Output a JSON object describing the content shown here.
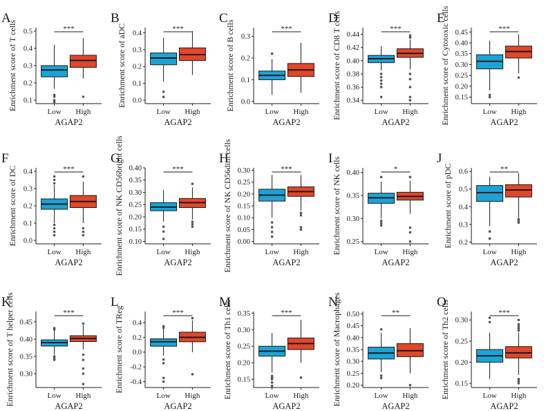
{
  "figure": {
    "colors": {
      "low": "#1ba3d6",
      "high": "#e0472b",
      "outlier": "#555555",
      "axis": "#1a1a1a"
    },
    "categories": [
      "Low",
      "High"
    ],
    "xlabel": "AGAP2"
  },
  "chart_data": [
    {
      "type": "box",
      "panel": "A",
      "ylabel": "Enrichment score of T cells",
      "ylim": [
        0.08,
        0.52
      ],
      "ticks": [
        0.1,
        0.2,
        0.3,
        0.4,
        0.5
      ],
      "tick_labels": [
        "0.1",
        "0.2",
        "0.3",
        "0.4",
        "0.5"
      ],
      "significance": "***",
      "series": [
        {
          "name": "Low",
          "q1": 0.235,
          "median": 0.275,
          "q3": 0.3,
          "lo": 0.165,
          "hi": 0.42,
          "outliers": [
            0.13,
            0.12,
            0.1,
            0.09
          ]
        },
        {
          "name": "High",
          "q1": 0.29,
          "median": 0.33,
          "q3": 0.36,
          "lo": 0.225,
          "hi": 0.46,
          "outliers": [
            0.12
          ]
        }
      ]
    },
    {
      "type": "box",
      "panel": "B",
      "ylabel": "Enrichment score of aDC",
      "ylim": [
        -0.02,
        0.43
      ],
      "ticks": [
        0.0,
        0.1,
        0.2,
        0.3,
        0.4
      ],
      "tick_labels": [
        "0.0",
        "0.1",
        "0.2",
        "0.3",
        "0.4"
      ],
      "significance": "***",
      "series": [
        {
          "name": "Low",
          "q1": 0.21,
          "median": 0.25,
          "q3": 0.28,
          "lo": 0.11,
          "hi": 0.37,
          "outliers": [
            0.05,
            0.02
          ]
        },
        {
          "name": "High",
          "q1": 0.235,
          "median": 0.27,
          "q3": 0.31,
          "lo": 0.15,
          "hi": 0.41,
          "outliers": []
        }
      ]
    },
    {
      "type": "box",
      "panel": "C",
      "ylabel": "Enrichment score of B cells",
      "ylim": [
        -0.01,
        0.34
      ],
      "ticks": [
        0.0,
        0.1,
        0.2,
        0.3
      ],
      "tick_labels": [
        "0.0",
        "0.1",
        "0.2",
        "0.3"
      ],
      "significance": "***",
      "series": [
        {
          "name": "Low",
          "q1": 0.1,
          "median": 0.12,
          "q3": 0.14,
          "lo": 0.03,
          "hi": 0.195,
          "outliers": [
            0.22
          ]
        },
        {
          "name": "High",
          "q1": 0.115,
          "median": 0.145,
          "q3": 0.175,
          "lo": 0.04,
          "hi": 0.27,
          "outliers": []
        }
      ]
    },
    {
      "type": "box",
      "panel": "D",
      "ylabel": "Enrichment score of CD8 T cells",
      "ylim": [
        0.335,
        0.45
      ],
      "ticks": [
        0.34,
        0.36,
        0.38,
        0.4,
        0.42,
        0.44
      ],
      "tick_labels": [
        "0.34",
        "0.36",
        "0.38",
        "0.40",
        "0.42",
        "0.44"
      ],
      "significance": "***",
      "series": [
        {
          "name": "Low",
          "q1": 0.397,
          "median": 0.403,
          "q3": 0.408,
          "lo": 0.385,
          "hi": 0.422,
          "outliers": [
            0.38,
            0.375,
            0.37,
            0.365,
            0.36,
            0.345
          ]
        },
        {
          "name": "High",
          "q1": 0.405,
          "median": 0.411,
          "q3": 0.418,
          "lo": 0.387,
          "hi": 0.432,
          "outliers": [
            0.438,
            0.435,
            0.38,
            0.372,
            0.36,
            0.345,
            0.34
          ]
        }
      ]
    },
    {
      "type": "box",
      "panel": "E",
      "ylabel": "Enrichment score of Cytotoxic cells",
      "ylim": [
        0.12,
        0.47
      ],
      "ticks": [
        0.15,
        0.2,
        0.25,
        0.3,
        0.35,
        0.4,
        0.45
      ],
      "tick_labels": [
        "0.15",
        "0.20",
        "0.25",
        "0.30",
        "0.35",
        "0.40",
        "0.45"
      ],
      "significance": "***",
      "series": [
        {
          "name": "Low",
          "q1": 0.28,
          "median": 0.315,
          "q3": 0.345,
          "lo": 0.18,
          "hi": 0.41,
          "outliers": [
            0.16,
            0.15
          ]
        },
        {
          "name": "High",
          "q1": 0.33,
          "median": 0.36,
          "q3": 0.385,
          "lo": 0.26,
          "hi": 0.44,
          "outliers": [
            0.24
          ]
        }
      ]
    },
    {
      "type": "box",
      "panel": "F",
      "ylabel": "Enrichment score of DC",
      "ylim": [
        -0.02,
        0.42
      ],
      "ticks": [
        0.0,
        0.1,
        0.2,
        0.3,
        0.4
      ],
      "tick_labels": [
        "0.0",
        "0.1",
        "0.2",
        "0.3",
        "0.4"
      ],
      "significance": "***",
      "series": [
        {
          "name": "Low",
          "q1": 0.18,
          "median": 0.21,
          "q3": 0.24,
          "lo": 0.1,
          "hi": 0.32,
          "outliers": [
            0.37,
            0.35,
            0.33,
            0.09,
            0.07,
            0.05,
            0.03
          ]
        },
        {
          "name": "High",
          "q1": 0.19,
          "median": 0.225,
          "q3": 0.26,
          "lo": 0.1,
          "hi": 0.34,
          "outliers": [
            0.37,
            0.07,
            0.05,
            0.03
          ]
        }
      ]
    },
    {
      "type": "box",
      "panel": "G",
      "ylabel": "Enrichment score of NK CD56bright cells",
      "ylim": [
        0.09,
        0.4
      ],
      "ticks": [
        0.1,
        0.15,
        0.2,
        0.25,
        0.3,
        0.35,
        0.4
      ],
      "tick_labels": [
        "0.10",
        "0.15",
        "0.20",
        "0.25",
        "0.30",
        "0.35",
        "0.40"
      ],
      "significance": "***",
      "series": [
        {
          "name": "Low",
          "q1": 0.225,
          "median": 0.24,
          "q3": 0.258,
          "lo": 0.18,
          "hi": 0.31,
          "outliers": [
            0.16,
            0.14,
            0.11
          ]
        },
        {
          "name": "High",
          "q1": 0.238,
          "median": 0.258,
          "q3": 0.275,
          "lo": 0.19,
          "hi": 0.32,
          "outliers": [
            0.335,
            0.18,
            0.17,
            0.16
          ]
        }
      ]
    },
    {
      "type": "box",
      "panel": "H",
      "ylabel": "Enrichment score of NK CD56dim cells",
      "ylim": [
        -0.01,
        0.31
      ],
      "ticks": [
        0.0,
        0.05,
        0.1,
        0.15,
        0.2,
        0.25,
        0.3
      ],
      "tick_labels": [
        "0.00",
        "0.05",
        "0.10",
        "0.15",
        "0.20",
        "0.25",
        "0.30"
      ],
      "significance": "***",
      "series": [
        {
          "name": "Low",
          "q1": 0.17,
          "median": 0.195,
          "q3": 0.22,
          "lo": 0.1,
          "hi": 0.28,
          "outliers": [
            0.08,
            0.06,
            0.04,
            0.02
          ]
        },
        {
          "name": "High",
          "q1": 0.19,
          "median": 0.21,
          "q3": 0.23,
          "lo": 0.13,
          "hi": 0.28,
          "outliers": [
            0.12,
            0.11,
            0.06,
            0.05
          ]
        }
      ]
    },
    {
      "type": "box",
      "panel": "I",
      "ylabel": "Enrichment score of NK cells",
      "ylim": [
        0.245,
        0.41
      ],
      "ticks": [
        0.25,
        0.3,
        0.35,
        0.4
      ],
      "tick_labels": [
        "0.25",
        "0.30",
        "0.35",
        "0.40"
      ],
      "significance": "*",
      "series": [
        {
          "name": "Low",
          "q1": 0.333,
          "median": 0.345,
          "q3": 0.355,
          "lo": 0.3,
          "hi": 0.38,
          "outliers": [
            0.39,
            0.295,
            0.29,
            0.285
          ]
        },
        {
          "name": "High",
          "q1": 0.34,
          "median": 0.348,
          "q3": 0.357,
          "lo": 0.31,
          "hi": 0.382,
          "outliers": [
            0.39,
            0.28,
            0.27,
            0.25
          ]
        }
      ]
    },
    {
      "type": "box",
      "panel": "J",
      "ylabel": "Enrichment score of pDC",
      "ylim": [
        0.19,
        0.62
      ],
      "ticks": [
        0.2,
        0.3,
        0.4,
        0.5,
        0.6
      ],
      "tick_labels": [
        "0.2",
        "0.3",
        "0.4",
        "0.5",
        "0.6"
      ],
      "significance": "**",
      "series": [
        {
          "name": "Low",
          "q1": 0.43,
          "median": 0.48,
          "q3": 0.52,
          "lo": 0.29,
          "hi": 0.57,
          "outliers": [
            0.26,
            0.22
          ]
        },
        {
          "name": "High",
          "q1": 0.455,
          "median": 0.495,
          "q3": 0.525,
          "lo": 0.34,
          "hi": 0.59,
          "outliers": [
            0.33,
            0.32,
            0.31
          ]
        }
      ]
    },
    {
      "type": "box",
      "panel": "K",
      "ylabel": "Enrichment score of T helper cells",
      "ylim": [
        0.26,
        0.48
      ],
      "ticks": [
        0.3,
        0.35,
        0.4,
        0.45
      ],
      "tick_labels": [
        "0.30",
        "0.35",
        "0.40",
        "0.45"
      ],
      "significance": "***",
      "series": [
        {
          "name": "Low",
          "q1": 0.38,
          "median": 0.39,
          "q3": 0.398,
          "lo": 0.355,
          "hi": 0.425,
          "outliers": [
            0.432,
            0.428,
            0.35,
            0.345,
            0.34
          ]
        },
        {
          "name": "High",
          "q1": 0.393,
          "median": 0.402,
          "q3": 0.41,
          "lo": 0.37,
          "hi": 0.44,
          "outliers": [
            0.445,
            0.355,
            0.34,
            0.315,
            0.3,
            0.27
          ]
        }
      ]
    },
    {
      "type": "box",
      "panel": "L",
      "ylabel": "Enrichment score of TReg",
      "ylim": [
        -0.48,
        0.55
      ],
      "ticks": [
        -0.4,
        -0.2,
        0.0,
        0.2,
        0.4
      ],
      "tick_labels": [
        "-0.4",
        "-0.2",
        "0.0",
        "0.2",
        "0.4"
      ],
      "significance": "***",
      "series": [
        {
          "name": "Low",
          "q1": 0.08,
          "median": 0.14,
          "q3": 0.18,
          "lo": -0.05,
          "hi": 0.32,
          "outliers": [
            0.35,
            0.33,
            -0.1,
            -0.15,
            -0.35,
            -0.4
          ]
        },
        {
          "name": "High",
          "q1": 0.14,
          "median": 0.2,
          "q3": 0.27,
          "lo": 0.0,
          "hi": 0.43,
          "outliers": [
            0.46,
            -0.3
          ]
        }
      ]
    },
    {
      "type": "box",
      "panel": "M",
      "ylabel": "Enrichment score of Th1 cells",
      "ylim": [
        0.125,
        0.355
      ],
      "ticks": [
        0.15,
        0.2,
        0.25,
        0.3,
        0.35
      ],
      "tick_labels": [
        "0.15",
        "0.20",
        "0.25",
        "0.30",
        "0.35"
      ],
      "significance": "***",
      "series": [
        {
          "name": "Low",
          "q1": 0.22,
          "median": 0.235,
          "q3": 0.25,
          "lo": 0.17,
          "hi": 0.29,
          "outliers": [
            0.16,
            0.155,
            0.15,
            0.14,
            0.13
          ]
        },
        {
          "name": "High",
          "q1": 0.24,
          "median": 0.258,
          "q3": 0.275,
          "lo": 0.2,
          "hi": 0.33,
          "outliers": [
            0.155
          ]
        }
      ]
    },
    {
      "type": "box",
      "panel": "N",
      "ylabel": "Enrichment score of Macrophages",
      "ylim": [
        0.19,
        0.51
      ],
      "ticks": [
        0.2,
        0.25,
        0.3,
        0.35,
        0.4,
        0.45,
        0.5
      ],
      "tick_labels": [
        "0.20",
        "0.25",
        "0.30",
        "0.35",
        "0.40",
        "0.45",
        "0.50"
      ],
      "significance": "**",
      "series": [
        {
          "name": "Low",
          "q1": 0.31,
          "median": 0.335,
          "q3": 0.36,
          "lo": 0.255,
          "hi": 0.42,
          "outliers": [
            0.435,
            0.24,
            0.23
          ]
        },
        {
          "name": "High",
          "q1": 0.32,
          "median": 0.345,
          "q3": 0.375,
          "lo": 0.25,
          "hi": 0.44,
          "outliers": [
            0.2
          ]
        }
      ]
    },
    {
      "type": "box",
      "panel": "O",
      "ylabel": "Enrichment score of Th2 cells",
      "ylim": [
        0.14,
        0.32
      ],
      "ticks": [
        0.15,
        0.2,
        0.25,
        0.3
      ],
      "tick_labels": [
        "0.15",
        "0.20",
        "0.25",
        "0.30"
      ],
      "significance": "***",
      "series": [
        {
          "name": "Low",
          "q1": 0.2,
          "median": 0.215,
          "q3": 0.23,
          "lo": 0.16,
          "hi": 0.27,
          "outliers": [
            0.305,
            0.295
          ]
        },
        {
          "name": "High",
          "q1": 0.21,
          "median": 0.222,
          "q3": 0.237,
          "lo": 0.17,
          "hi": 0.27,
          "outliers": [
            0.3,
            0.29,
            0.285,
            0.28,
            0.275,
            0.16,
            0.155,
            0.15
          ]
        }
      ]
    }
  ]
}
